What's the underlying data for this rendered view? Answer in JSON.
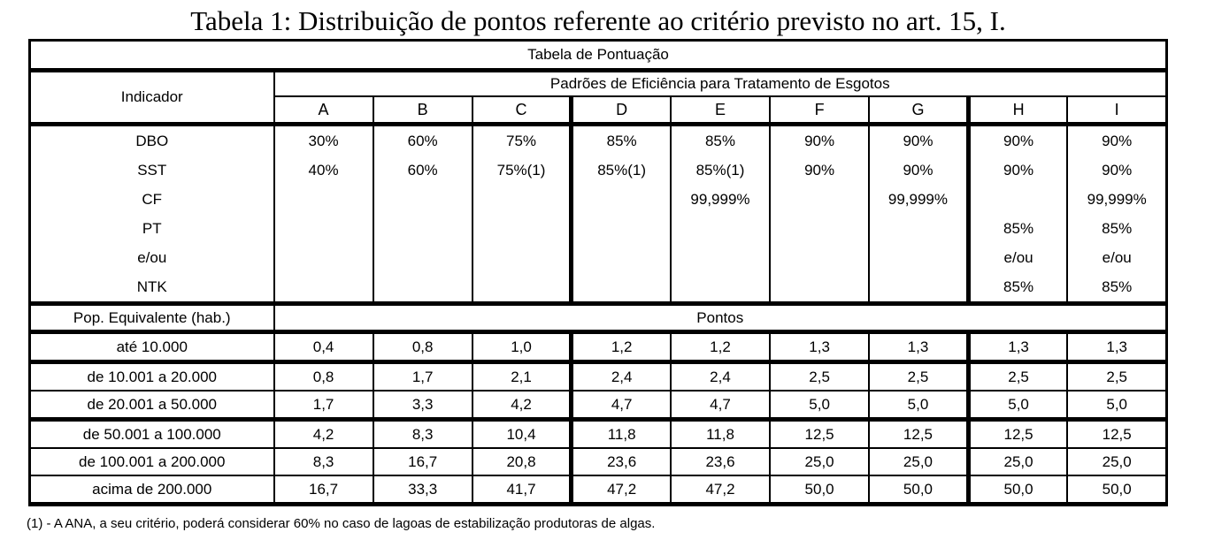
{
  "title": "Tabela 1: Distribuição de pontos referente ao critério previsto no art. 15, I.",
  "table": {
    "header": "Tabela de Pontuação",
    "indicator_header": "Indicador",
    "efficiency_header": "Padrões de Eficiência para Tratamento de Esgotos",
    "indicators": [
      "DBO",
      "SST",
      "CF",
      "PT",
      "e/ou",
      "NTK"
    ],
    "efficiency_columns": [
      {
        "letter": "A",
        "values": [
          "30%",
          "40%",
          "",
          "",
          "",
          ""
        ]
      },
      {
        "letter": "B",
        "values": [
          "60%",
          "60%",
          "",
          "",
          "",
          ""
        ]
      },
      {
        "letter": "C",
        "values": [
          "75%",
          "75%(1)",
          "",
          "",
          "",
          ""
        ]
      },
      {
        "letter": "D",
        "values": [
          "85%",
          "85%(1)",
          "",
          "",
          "",
          ""
        ]
      },
      {
        "letter": "E",
        "values": [
          "85%",
          "85%(1)",
          "99,999%",
          "",
          "",
          ""
        ]
      },
      {
        "letter": "F",
        "values": [
          "90%",
          "90%",
          "",
          "",
          "",
          ""
        ]
      },
      {
        "letter": "G",
        "values": [
          "90%",
          "90%",
          "99,999%",
          "",
          "",
          ""
        ]
      },
      {
        "letter": "H",
        "values": [
          "90%",
          "90%",
          "",
          "85%",
          "e/ou",
          "85%"
        ]
      },
      {
        "letter": "I",
        "values": [
          "90%",
          "90%",
          "99,999%",
          "85%",
          "e/ou",
          "85%"
        ]
      }
    ],
    "population_header": "Pop. Equivalente (hab.)",
    "points_header": "Pontos",
    "points_rows": [
      {
        "range": "até 10.000",
        "values": [
          "0,4",
          "0,8",
          "1,0",
          "1,2",
          "1,2",
          "1,3",
          "1,3",
          "1,3",
          "1,3"
        ]
      },
      {
        "range": "de 10.001 a 20.000",
        "values": [
          "0,8",
          "1,7",
          "2,1",
          "2,4",
          "2,4",
          "2,5",
          "2,5",
          "2,5",
          "2,5"
        ]
      },
      {
        "range": "de 20.001 a 50.000",
        "values": [
          "1,7",
          "3,3",
          "4,2",
          "4,7",
          "4,7",
          "5,0",
          "5,0",
          "5,0",
          "5,0"
        ]
      },
      {
        "range": "de 50.001 a 100.000",
        "values": [
          "4,2",
          "8,3",
          "10,4",
          "11,8",
          "11,8",
          "12,5",
          "12,5",
          "12,5",
          "12,5"
        ]
      },
      {
        "range": "de 100.001 a 200.000",
        "values": [
          "8,3",
          "16,7",
          "20,8",
          "23,6",
          "23,6",
          "25,0",
          "25,0",
          "25,0",
          "25,0"
        ]
      },
      {
        "range": "acima de 200.000",
        "values": [
          "16,7",
          "33,3",
          "41,7",
          "47,2",
          "47,2",
          "50,0",
          "50,0",
          "50,0",
          "50,0"
        ]
      }
    ]
  },
  "footnote": "(1) - A ANA, a seu critério, poderá considerar 60% no caso de lagoas de estabilização produtoras de algas."
}
